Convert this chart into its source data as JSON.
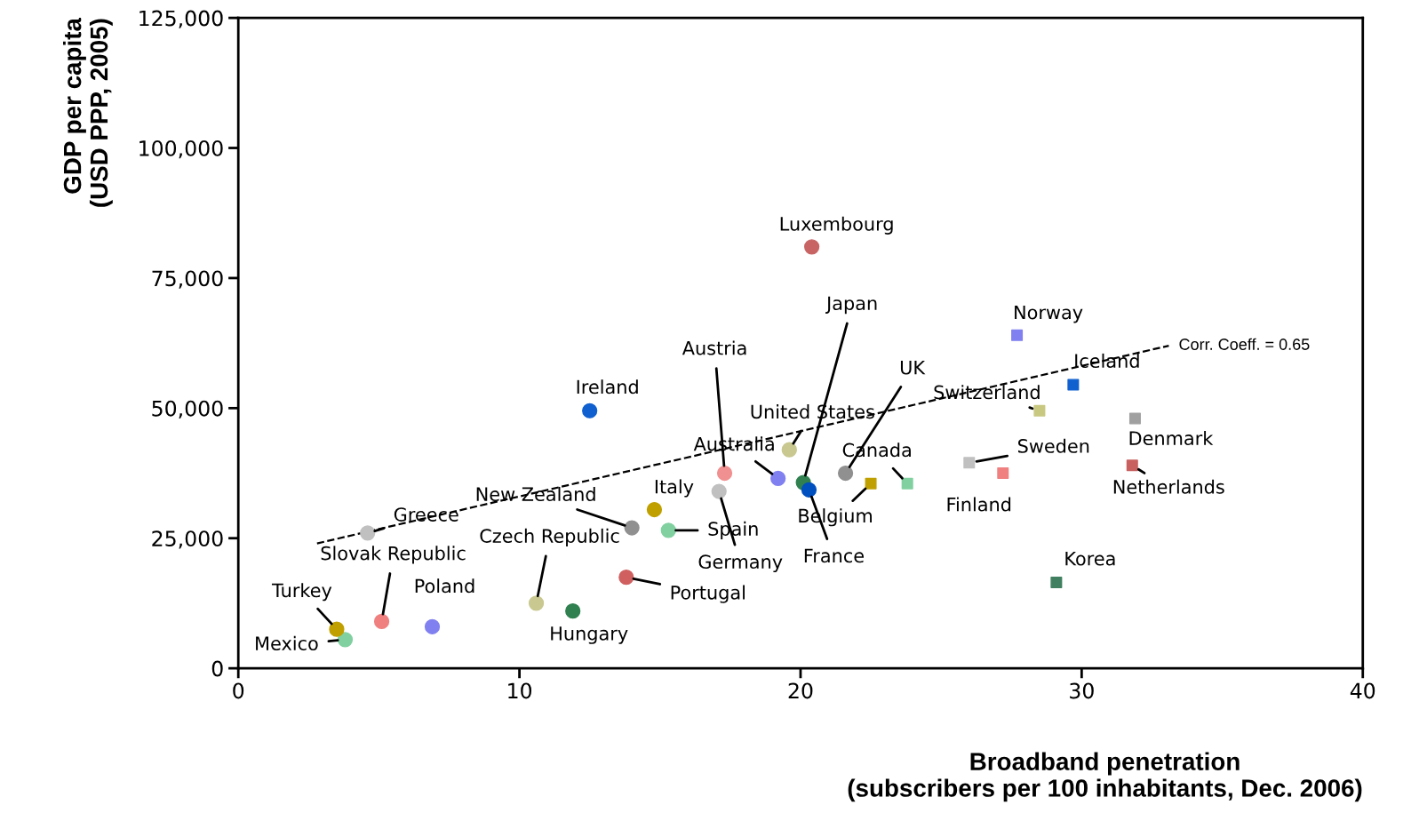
{
  "chart_data": {
    "type": "scatter",
    "xlabel": "Broadband penetration\n(subscribers per 100 inhabitants, Dec. 2006)",
    "ylabel": "GDP per capita\n(USD PPP, 2005)",
    "xlim": [
      0,
      40
    ],
    "xticks": [
      0,
      10,
      20,
      30,
      40
    ],
    "ylim": [
      0,
      125000
    ],
    "yticks": [
      0,
      {
        "value": 25000,
        "label": "25,000"
      },
      {
        "value": 50000,
        "label": "50,000"
      },
      {
        "value": 75000,
        "label": "75,000"
      },
      {
        "value": 100000,
        "label": "100,000"
      },
      {
        "value": 125000,
        "label": "125,000"
      }
    ],
    "grid": false,
    "legend": false,
    "series": [
      {
        "name": "Luxembourg",
        "color": "#c86464",
        "marker": "circle",
        "x": [
          20.4
        ],
        "values": [
          81000
        ]
      },
      {
        "name": "Norway",
        "color": "#8080f0",
        "marker": "square",
        "x": [
          27.7
        ],
        "values": [
          64000
        ]
      },
      {
        "name": "Iceland",
        "color": "#1060d0",
        "marker": "square",
        "x": [
          29.7
        ],
        "values": [
          54500
        ]
      },
      {
        "name": "Switzerland",
        "color": "#c8c880",
        "marker": "square",
        "x": [
          28.5
        ],
        "values": [
          49500
        ]
      },
      {
        "name": "Denmark",
        "color": "#a0a0a0",
        "marker": "square",
        "x": [
          31.9
        ],
        "values": [
          48000
        ]
      },
      {
        "name": "Netherlands",
        "color": "#c86060",
        "marker": "square",
        "x": [
          31.8
        ],
        "values": [
          39000
        ]
      },
      {
        "name": "Sweden",
        "color": "#c0c0c0",
        "marker": "square",
        "x": [
          26.0
        ],
        "values": [
          39500
        ]
      },
      {
        "name": "Finland",
        "color": "#f08080",
        "marker": "square",
        "x": [
          27.2
        ],
        "values": [
          37500
        ]
      },
      {
        "name": "Korea",
        "color": "#408060",
        "marker": "square",
        "x": [
          29.1
        ],
        "values": [
          16500
        ]
      },
      {
        "name": "Canada",
        "color": "#80d0a0",
        "marker": "square",
        "x": [
          23.8
        ],
        "values": [
          35500
        ]
      },
      {
        "name": "Belgium",
        "color": "#c0a000",
        "marker": "square",
        "x": [
          22.5
        ],
        "values": [
          35500
        ]
      },
      {
        "name": "UK",
        "color": "#909090",
        "marker": "circle",
        "x": [
          21.6
        ],
        "values": [
          37500
        ]
      },
      {
        "name": "France",
        "color": "#0050c0",
        "marker": "circle",
        "x": [
          20.3
        ],
        "values": [
          34300
        ]
      },
      {
        "name": "Japan",
        "color": "#308050",
        "marker": "circle",
        "x": [
          20.1
        ],
        "values": [
          35700
        ]
      },
      {
        "name": "United States",
        "color": "#c8c890",
        "marker": "circle",
        "x": [
          19.6
        ],
        "values": [
          42000
        ]
      },
      {
        "name": "Australia",
        "color": "#8080f0",
        "marker": "circle",
        "x": [
          19.2
        ],
        "values": [
          36500
        ]
      },
      {
        "name": "Austria",
        "color": "#f09090",
        "marker": "circle",
        "x": [
          17.3
        ],
        "values": [
          37500
        ]
      },
      {
        "name": "Germany",
        "color": "#c0c0c0",
        "marker": "circle",
        "x": [
          17.1
        ],
        "values": [
          34000
        ]
      },
      {
        "name": "Italy",
        "color": "#c0a000",
        "marker": "circle",
        "x": [
          14.8
        ],
        "values": [
          30500
        ]
      },
      {
        "name": "Spain",
        "color": "#80d0a0",
        "marker": "circle",
        "x": [
          15.3
        ],
        "values": [
          26500
        ]
      },
      {
        "name": "New Zealand",
        "color": "#909090",
        "marker": "circle",
        "x": [
          14.0
        ],
        "values": [
          27000
        ]
      },
      {
        "name": "Ireland",
        "color": "#1060d0",
        "marker": "circle",
        "x": [
          12.5
        ],
        "values": [
          49500
        ]
      },
      {
        "name": "Portugal",
        "color": "#d06060",
        "marker": "circle",
        "x": [
          13.8
        ],
        "values": [
          17500
        ]
      },
      {
        "name": "Hungary",
        "color": "#308050",
        "marker": "circle",
        "x": [
          11.9
        ],
        "values": [
          11000
        ]
      },
      {
        "name": "Czech Republic",
        "color": "#c8c890",
        "marker": "circle",
        "x": [
          10.6
        ],
        "values": [
          12500
        ]
      },
      {
        "name": "Poland",
        "color": "#8080f0",
        "marker": "circle",
        "x": [
          6.9
        ],
        "values": [
          8000
        ]
      },
      {
        "name": "Slovak Republic",
        "color": "#f08080",
        "marker": "circle",
        "x": [
          5.1
        ],
        "values": [
          9000
        ]
      },
      {
        "name": "Greece",
        "color": "#c0c0c0",
        "marker": "circle",
        "x": [
          4.6
        ],
        "values": [
          26000
        ]
      },
      {
        "name": "Turkey",
        "color": "#c0a000",
        "marker": "circle",
        "x": [
          3.5
        ],
        "values": [
          7500
        ]
      },
      {
        "name": "Mexico",
        "color": "#80d0a0",
        "marker": "circle",
        "x": [
          3.8
        ],
        "values": [
          5500
        ]
      },
      {
        "type": "line",
        "color": "#000000",
        "line_style": "dashed",
        "marker": "none",
        "x": [
          2.8,
          33.1
        ],
        "values": [
          24000,
          62000
        ]
      }
    ],
    "annotations": [
      {
        "text": "Corr. Coeff. = 0.65",
        "x": 33.1,
        "y": 62000
      }
    ]
  }
}
